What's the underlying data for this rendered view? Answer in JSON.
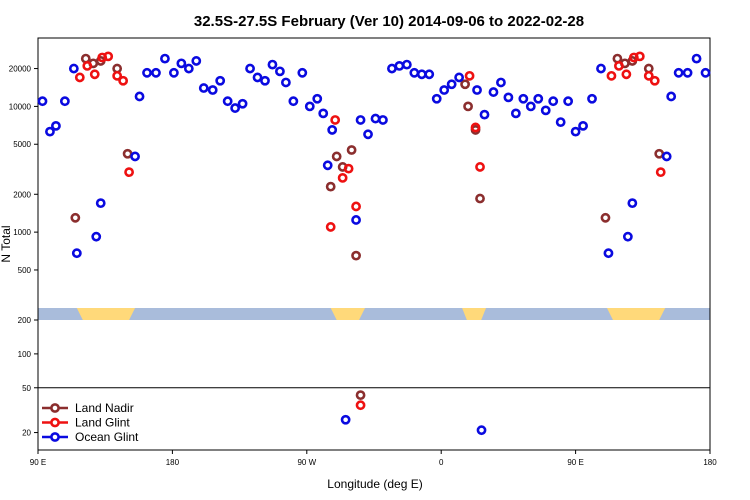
{
  "chart_data": {
    "type": "scatter",
    "title": "32.5S-27.5S February (Ver 10)   2014-09-06 to 2022-02-28",
    "xlabel": "Longitude (deg E)",
    "ylabel": "N Total",
    "xlim": [
      90,
      540
    ],
    "x_ticks": [
      {
        "value": 90,
        "label": "90 E"
      },
      {
        "value": 180,
        "label": "180"
      },
      {
        "value": 270,
        "label": "90 W"
      },
      {
        "value": 360,
        "label": "0"
      },
      {
        "value": 450,
        "label": "90 E"
      },
      {
        "value": 540,
        "label": "180"
      }
    ],
    "upper_panel": {
      "ylim": [
        200,
        35000
      ],
      "y_ticks": [
        {
          "value": 200,
          "label": "200"
        },
        {
          "value": 500,
          "label": "500"
        },
        {
          "value": 1000,
          "label": "1000"
        },
        {
          "value": 2000,
          "label": "2000"
        },
        {
          "value": 5000,
          "label": "5000"
        },
        {
          "value": 10000,
          "label": "10000"
        },
        {
          "value": 20000,
          "label": "20000"
        }
      ]
    },
    "lower_panel": {
      "ylim": [
        14,
        200
      ],
      "y_ticks": [
        {
          "value": 20,
          "label": "20"
        },
        {
          "value": 50,
          "label": "50"
        },
        {
          "value": 100,
          "label": "100"
        }
      ]
    },
    "colors": {
      "land_nadir": "#8b2e2e",
      "land_glint": "#ee1111",
      "ocean_glint": "#0a0ae0",
      "ocean_band": "#a9bcdb",
      "land_band": "#ffd97a"
    },
    "band_land_ranges": [
      [
        116,
        155
      ],
      [
        286,
        309
      ],
      [
        374,
        390
      ],
      [
        471,
        510
      ]
    ],
    "series": [
      {
        "name": "Land Nadir",
        "color": "#8b2e2e",
        "points": [
          [
            115,
            1300
          ],
          [
            122,
            24000
          ],
          [
            127,
            22000
          ],
          [
            132,
            23000
          ],
          [
            143,
            20000
          ],
          [
            150,
            4200
          ],
          [
            286,
            2300
          ],
          [
            290,
            4000
          ],
          [
            294,
            3300
          ],
          [
            300,
            4500
          ],
          [
            303,
            650
          ],
          [
            376,
            15000
          ],
          [
            378,
            10000
          ],
          [
            383,
            6500
          ],
          [
            386,
            1850
          ],
          [
            470,
            1300
          ],
          [
            478,
            24000
          ],
          [
            483,
            22000
          ],
          [
            488,
            23000
          ],
          [
            499,
            20000
          ],
          [
            506,
            4200
          ],
          [
            306,
            43
          ]
        ]
      },
      {
        "name": "Land Glint",
        "color": "#ee1111",
        "points": [
          [
            118,
            17000
          ],
          [
            123,
            21000
          ],
          [
            128,
            18000
          ],
          [
            133,
            24500
          ],
          [
            137,
            25000
          ],
          [
            143,
            17500
          ],
          [
            147,
            16000
          ],
          [
            151,
            3000
          ],
          [
            286,
            1100
          ],
          [
            289,
            7800
          ],
          [
            294,
            2700
          ],
          [
            298,
            3200
          ],
          [
            303,
            1600
          ],
          [
            379,
            17500
          ],
          [
            383,
            6800
          ],
          [
            386,
            3300
          ],
          [
            474,
            17500
          ],
          [
            479,
            21000
          ],
          [
            484,
            18000
          ],
          [
            489,
            24500
          ],
          [
            493,
            25000
          ],
          [
            499,
            17500
          ],
          [
            503,
            16000
          ],
          [
            507,
            3000
          ],
          [
            306,
            35
          ]
        ]
      },
      {
        "name": "Ocean Glint",
        "color": "#0a0ae0",
        "points": [
          [
            93,
            11000
          ],
          [
            98,
            6300
          ],
          [
            102,
            7000
          ],
          [
            108,
            11000
          ],
          [
            114,
            20000
          ],
          [
            116,
            680
          ],
          [
            129,
            920
          ],
          [
            132,
            1700
          ],
          [
            155,
            4000
          ],
          [
            158,
            12000
          ],
          [
            163,
            18500
          ],
          [
            169,
            18500
          ],
          [
            175,
            24000
          ],
          [
            181,
            18500
          ],
          [
            186,
            22000
          ],
          [
            191,
            20000
          ],
          [
            196,
            23000
          ],
          [
            201,
            14000
          ],
          [
            207,
            13500
          ],
          [
            212,
            16000
          ],
          [
            217,
            11000
          ],
          [
            222,
            9700
          ],
          [
            227,
            10500
          ],
          [
            232,
            20000
          ],
          [
            237,
            17000
          ],
          [
            242,
            16000
          ],
          [
            247,
            21500
          ],
          [
            252,
            19000
          ],
          [
            256,
            15500
          ],
          [
            261,
            11000
          ],
          [
            267,
            18500
          ],
          [
            272,
            10000
          ],
          [
            277,
            11500
          ],
          [
            281,
            8800
          ],
          [
            287,
            6500
          ],
          [
            284,
            3400
          ],
          [
            303,
            1250
          ],
          [
            306,
            7800
          ],
          [
            311,
            6000
          ],
          [
            316,
            8000
          ],
          [
            321,
            7800
          ],
          [
            327,
            20000
          ],
          [
            332,
            21000
          ],
          [
            337,
            21500
          ],
          [
            342,
            18500
          ],
          [
            347,
            18000
          ],
          [
            352,
            18000
          ],
          [
            357,
            11500
          ],
          [
            362,
            13500
          ],
          [
            367,
            15000
          ],
          [
            372,
            17000
          ],
          [
            384,
            13500
          ],
          [
            389,
            8600
          ],
          [
            395,
            13000
          ],
          [
            400,
            15500
          ],
          [
            405,
            11800
          ],
          [
            410,
            8800
          ],
          [
            415,
            11500
          ],
          [
            420,
            10000
          ],
          [
            425,
            11500
          ],
          [
            430,
            9300
          ],
          [
            435,
            11000
          ],
          [
            440,
            7500
          ],
          [
            445,
            11000
          ],
          [
            450,
            6300
          ],
          [
            455,
            7000
          ],
          [
            461,
            11500
          ],
          [
            467,
            20000
          ],
          [
            472,
            680
          ],
          [
            485,
            920
          ],
          [
            488,
            1700
          ],
          [
            511,
            4000
          ],
          [
            514,
            12000
          ],
          [
            519,
            18500
          ],
          [
            525,
            18500
          ],
          [
            531,
            24000
          ],
          [
            537,
            18500
          ],
          [
            296,
            26
          ],
          [
            387,
            21
          ]
        ]
      }
    ]
  }
}
